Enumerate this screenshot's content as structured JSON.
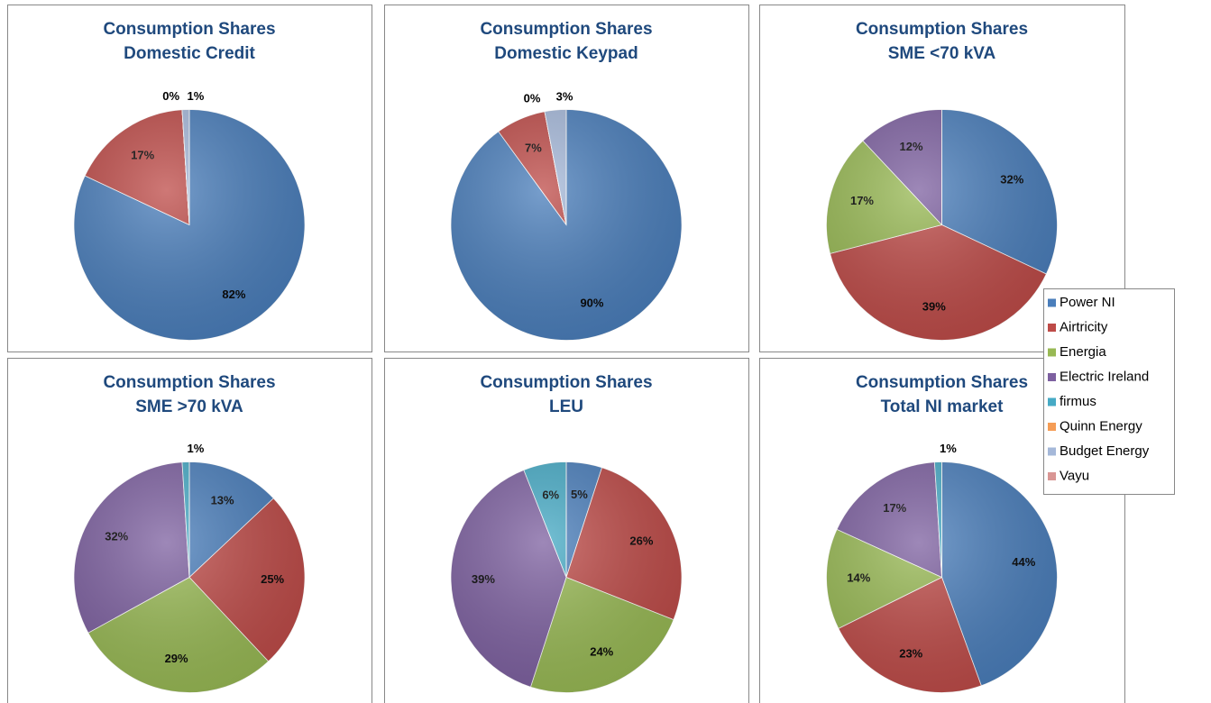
{
  "chart_data": [
    {
      "type": "pie",
      "title": [
        "Consumption Shares",
        "Domestic Credit"
      ],
      "categories": [
        "Power NI",
        "Airtricity",
        "Energia",
        "Electric Ireland",
        "firmus",
        "Quinn Energy",
        "Budget Energy",
        "Vayu"
      ],
      "values": [
        82,
        17,
        0,
        0,
        0,
        0,
        1,
        0
      ],
      "value_labels": [
        "82%",
        "17%",
        null,
        "0%",
        null,
        null,
        "1%",
        null
      ],
      "colors": [
        "#4a7ebb",
        "#be4b48",
        "#98b954",
        "#7d60a0",
        "#46aac5",
        "#f59d56",
        "#a5b8d9",
        "#d99694"
      ]
    },
    {
      "type": "pie",
      "title": [
        "Consumption Shares",
        "Domestic Keypad"
      ],
      "categories": [
        "Power NI",
        "Airtricity",
        "Energia",
        "Electric Ireland",
        "firmus",
        "Quinn Energy",
        "Budget Energy",
        "Vayu"
      ],
      "values": [
        90,
        7,
        0,
        0,
        0,
        0,
        3,
        0
      ],
      "value_labels": [
        "90%",
        "7%",
        null,
        "0%",
        null,
        null,
        "3%",
        null
      ],
      "colors": [
        "#4a7ebb",
        "#be4b48",
        "#98b954",
        "#7d60a0",
        "#46aac5",
        "#f59d56",
        "#a5b8d9",
        "#d99694"
      ]
    },
    {
      "type": "pie",
      "title": [
        "Consumption Shares",
        "SME <70 kVA"
      ],
      "categories": [
        "Power NI",
        "Airtricity",
        "Energia",
        "Electric Ireland",
        "firmus",
        "Quinn Energy",
        "Budget Energy",
        "Vayu"
      ],
      "values": [
        32,
        39,
        17,
        12,
        0,
        0,
        0,
        0
      ],
      "value_labels": [
        "32%",
        "39%",
        "17%",
        "12%",
        null,
        null,
        null,
        null
      ],
      "colors": [
        "#4a7ebb",
        "#be4b48",
        "#98b954",
        "#7d60a0",
        "#46aac5",
        "#f59d56",
        "#a5b8d9",
        "#d99694"
      ],
      "legend": "right"
    },
    {
      "type": "pie",
      "title": [
        "Consumption Shares",
        "SME >70 kVA"
      ],
      "categories": [
        "Power NI",
        "Airtricity",
        "Energia",
        "Electric Ireland",
        "firmus",
        "Quinn Energy",
        "Budget Energy",
        "Vayu"
      ],
      "values": [
        13,
        25,
        29,
        32,
        1,
        0,
        0,
        0
      ],
      "value_labels": [
        "13%",
        "25%",
        "29%",
        "32%",
        "1%",
        null,
        null,
        null
      ],
      "colors": [
        "#4a7ebb",
        "#be4b48",
        "#98b954",
        "#7d60a0",
        "#46aac5",
        "#f59d56",
        "#a5b8d9",
        "#d99694"
      ]
    },
    {
      "type": "pie",
      "title": [
        "Consumption Shares",
        "LEU"
      ],
      "categories": [
        "Power NI",
        "Airtricity",
        "Energia",
        "Electric Ireland",
        "firmus",
        "Quinn Energy",
        "Budget Energy",
        "Vayu"
      ],
      "values": [
        5,
        26,
        24,
        39,
        6,
        0,
        0,
        0
      ],
      "value_labels": [
        "5%",
        "26%",
        "24%",
        "39%",
        "6%",
        null,
        null,
        null
      ],
      "colors": [
        "#4a7ebb",
        "#be4b48",
        "#98b954",
        "#7d60a0",
        "#46aac5",
        "#f59d56",
        "#a5b8d9",
        "#d99694"
      ]
    },
    {
      "type": "pie",
      "title": [
        "Consumption Shares",
        "Total NI market"
      ],
      "categories": [
        "Power NI",
        "Airtricity",
        "Energia",
        "Electric Ireland",
        "firmus",
        "Quinn Energy",
        "Budget Energy",
        "Vayu"
      ],
      "values": [
        44,
        23,
        14,
        17,
        1,
        0,
        0,
        0
      ],
      "value_labels": [
        "44%",
        "23%",
        "14%",
        "17%",
        "1%",
        null,
        null,
        null
      ],
      "colors": [
        "#4a7ebb",
        "#be4b48",
        "#98b954",
        "#7d60a0",
        "#46aac5",
        "#f59d56",
        "#a5b8d9",
        "#d99694"
      ]
    }
  ]
}
